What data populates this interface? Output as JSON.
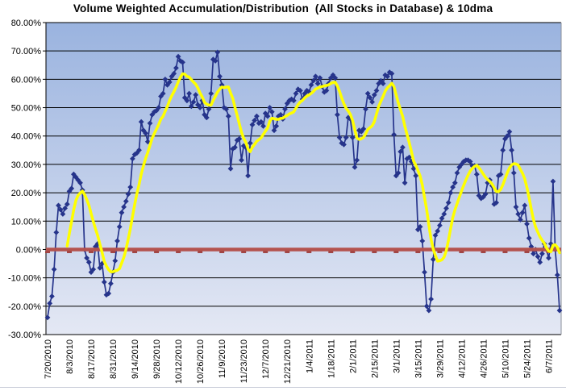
{
  "chart_data": {
    "type": "line",
    "title": "Volume Weighted Accumulation/Distribution  (All Stocks in Database) & 10dma",
    "xlabel": "",
    "ylabel": "",
    "ylim": [
      -30,
      80
    ],
    "y_ticks": [
      80,
      70,
      60,
      50,
      40,
      30,
      20,
      10,
      0,
      -10,
      -20,
      -30
    ],
    "y_tick_labels": [
      "80.00%",
      "70.00%",
      "60.00%",
      "50.00%",
      "40.00%",
      "30.00%",
      "20.00%",
      "10.00%",
      "0.00%",
      "-10.00%",
      "-20.00%",
      "-30.00%"
    ],
    "x_tick_labels": [
      "7/20/2010",
      "8/3/2010",
      "8/17/2010",
      "8/31/2010",
      "9/14/2010",
      "9/28/2010",
      "10/12/2010",
      "10/26/2010",
      "11/9/2010",
      "11/23/2010",
      "12/7/2010",
      "12/21/2010",
      "1/4/2011",
      "1/18/2011",
      "2/1/2011",
      "2/15/2011",
      "3/1/2011",
      "3/15/2011",
      "3/29/2011",
      "4/12/2011",
      "4/26/2011",
      "5/10/2011",
      "5/24/2011",
      "6/7/2011"
    ],
    "x_ticks_every_n_points": 10,
    "grid": "horizontal",
    "legend": "none",
    "colors": {
      "daily_series": "#26348B",
      "ma_series": "#FFFF00",
      "zero_line": "#B4524E",
      "zero_line_tick": "#A04240",
      "grid_line": "#000000",
      "plot_right_border": "#8a8f99",
      "plot_bg_top": "#9AB3DF",
      "plot_bg_bottom": "#E4E8F4",
      "label_text": "#000000",
      "frame_rule": "#c9cdd9"
    },
    "series": [
      {
        "name": "Volume Weighted Accumulation/Distribution (daily, % of all stocks in database)",
        "marker": "diamond",
        "values": [
          -24,
          -19,
          -16.5,
          -7,
          6,
          15.5,
          14,
          12.5,
          14.5,
          16,
          20.5,
          21.5,
          26.5,
          25.5,
          24.5,
          23.5,
          21,
          0,
          -3,
          -4.5,
          -8,
          -7,
          1,
          2,
          -6.5,
          -5,
          -11.5,
          -16,
          -15.5,
          -12,
          -8,
          -4,
          3,
          8,
          13,
          15,
          17,
          19.5,
          22,
          32,
          33.5,
          34,
          35,
          45,
          42,
          41,
          38,
          44.5,
          47.5,
          48.5,
          49,
          50,
          54,
          55,
          60,
          58,
          59,
          61,
          62,
          64,
          68,
          66.5,
          66,
          53.5,
          52.5,
          55,
          50.5,
          52,
          54.5,
          51,
          50,
          52.5,
          47.5,
          46.5,
          49.5,
          55,
          67,
          66.5,
          69.5,
          61,
          58,
          50,
          49.5,
          47,
          28.5,
          35.5,
          36,
          38.5,
          39,
          31.5,
          36.5,
          36,
          26,
          37.5,
          44,
          45.5,
          47,
          44.5,
          45,
          43.5,
          48,
          47,
          50,
          48.5,
          42,
          43.5,
          47,
          47.5,
          46,
          49.5,
          51.5,
          52.5,
          53,
          52.5,
          55,
          56.5,
          56,
          53,
          55,
          56,
          55.5,
          58,
          59.5,
          61,
          58.5,
          60.5,
          57.5,
          55.5,
          56,
          58.5,
          60.5,
          61.5,
          60.5,
          47.5,
          39.5,
          37.5,
          37,
          39.5,
          46.5,
          46,
          39.5,
          29,
          31.5,
          42,
          41.5,
          42.5,
          49.5,
          55,
          53.5,
          52,
          54.5,
          56,
          58.5,
          59.5,
          58.5,
          61.5,
          61,
          62.5,
          62,
          40.5,
          26,
          27,
          34.5,
          36,
          23.5,
          32,
          32.5,
          31,
          28.5,
          26,
          7,
          8,
          3,
          -8,
          -20,
          -21.5,
          -17.5,
          -3.5,
          5,
          6.5,
          8.5,
          11,
          12.5,
          14.5,
          16.5,
          20,
          22,
          23.5,
          27,
          29,
          30,
          31,
          31.5,
          31.5,
          31,
          29.5,
          29.5,
          26.5,
          19,
          18,
          18.5,
          19.5,
          23.5,
          24.5,
          22.5,
          16,
          16.5,
          26,
          26.5,
          35,
          39,
          40,
          41.5,
          35,
          27,
          15,
          12.5,
          10.5,
          13,
          15.5,
          9,
          4,
          1,
          -1.5,
          0,
          -2.5,
          -4.5,
          -1.5,
          2,
          0,
          -3,
          2,
          24,
          0,
          -9,
          -21.5
        ]
      },
      {
        "name": "10dma",
        "derivation": "10-day moving average of daily series",
        "window": 10
      },
      {
        "name": "zero reference line",
        "constant_value": 0
      }
    ]
  }
}
